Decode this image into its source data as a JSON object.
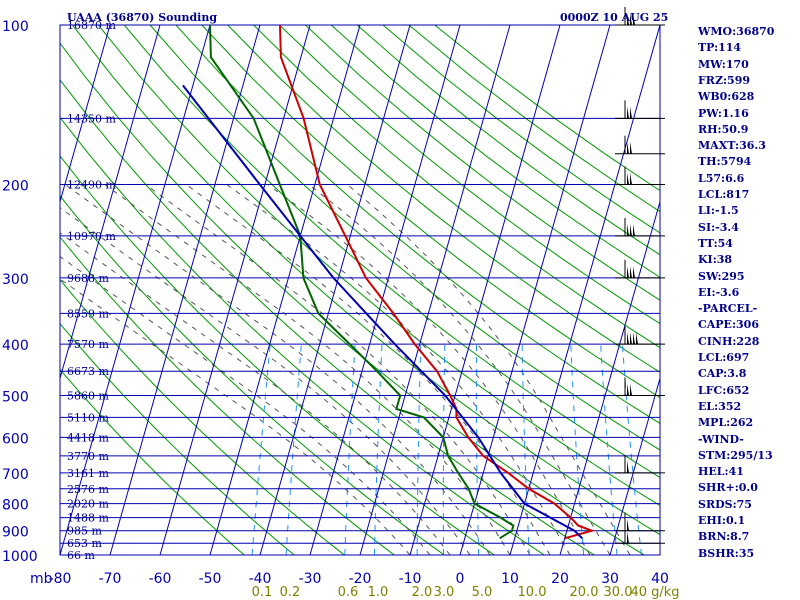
{
  "chart_data": {
    "type": "skew-t",
    "title": "UAAA (36870) Sounding",
    "date": "0000Z 10 AUG 25",
    "pressure_levels": [
      100,
      200,
      300,
      400,
      500,
      600,
      700,
      800,
      900,
      1000
    ],
    "pressure_unit_label": "mb",
    "temperature_ticks": [
      "-80",
      "-70",
      "-60",
      "-50",
      "-40",
      "-30",
      "-20",
      "-10",
      "0",
      "10",
      "20",
      "30",
      "40"
    ],
    "mixing_ratio_labels": [
      "0.1",
      "0.2",
      "0.6",
      "1.0",
      "2.0",
      "3.0",
      "5.0",
      "10.0",
      "20.0",
      "30.0",
      "40 g/kg"
    ],
    "height_labels": [
      {
        "p": 100,
        "label": "16870 m"
      },
      {
        "p": 150,
        "label": "14350 m"
      },
      {
        "p": 200,
        "label": "12490 m"
      },
      {
        "p": 250,
        "label": "10970 m"
      },
      {
        "p": 300,
        "label": "9688 m"
      },
      {
        "p": 350,
        "label": "8559 m"
      },
      {
        "p": 400,
        "label": "7570 m"
      },
      {
        "p": 450,
        "label": "6673 m"
      },
      {
        "p": 500,
        "label": "5860 m"
      },
      {
        "p": 550,
        "label": "5110 m"
      },
      {
        "p": 600,
        "label": "4418 m"
      },
      {
        "p": 650,
        "label": "3770 m"
      },
      {
        "p": 700,
        "label": "3161 m"
      },
      {
        "p": 750,
        "label": "2576 m"
      },
      {
        "p": 800,
        "label": "2020 m"
      },
      {
        "p": 850,
        "label": "1488 m"
      },
      {
        "p": 900,
        "label": "985 m"
      },
      {
        "p": 950,
        "label": "653 m"
      },
      {
        "p": 1000,
        "label": "66 m"
      }
    ],
    "series": [
      {
        "type": "temperature",
        "color": "#cc0000",
        "points": [
          [
            100,
            -66
          ],
          [
            115,
            -64
          ],
          [
            150,
            -56
          ],
          [
            200,
            -49
          ],
          [
            250,
            -41
          ],
          [
            300,
            -34.5
          ],
          [
            350,
            -27
          ],
          [
            400,
            -21
          ],
          [
            450,
            -15
          ],
          [
            500,
            -11
          ],
          [
            530,
            -9
          ],
          [
            550,
            -8.5
          ],
          [
            600,
            -5
          ],
          [
            650,
            -1
          ],
          [
            700,
            5
          ],
          [
            750,
            10
          ],
          [
            800,
            16
          ],
          [
            850,
            20
          ],
          [
            880,
            22
          ],
          [
            900,
            25
          ],
          [
            930,
            20
          ]
        ]
      },
      {
        "type": "dewpoint",
        "color": "#006400",
        "points": [
          [
            100,
            -80
          ],
          [
            115,
            -78
          ],
          [
            150,
            -66
          ],
          [
            200,
            -57
          ],
          [
            250,
            -50
          ],
          [
            300,
            -47
          ],
          [
            350,
            -42
          ],
          [
            400,
            -34
          ],
          [
            450,
            -27
          ],
          [
            500,
            -21
          ],
          [
            530,
            -21
          ],
          [
            550,
            -15
          ],
          [
            600,
            -10
          ],
          [
            650,
            -8
          ],
          [
            700,
            -5
          ],
          [
            750,
            -2
          ],
          [
            800,
            0
          ],
          [
            850,
            6
          ],
          [
            880,
            9
          ],
          [
            900,
            9
          ],
          [
            930,
            7
          ]
        ]
      },
      {
        "type": "parcel",
        "color": "#0000b0",
        "points": [
          [
            130,
            -82
          ],
          [
            200,
            -61
          ],
          [
            300,
            -41
          ],
          [
            400,
            -25
          ],
          [
            500,
            -12
          ],
          [
            600,
            -3
          ],
          [
            700,
            3.5
          ],
          [
            800,
            10
          ],
          [
            900,
            21.5
          ],
          [
            930,
            23.5
          ]
        ]
      }
    ],
    "winds": [
      {
        "p": 100,
        "knots": 15
      },
      {
        "p": 150,
        "knots": 10
      },
      {
        "p": 175,
        "knots": 10
      },
      {
        "p": 200,
        "knots": 10
      },
      {
        "p": 250,
        "knots": 15
      },
      {
        "p": 300,
        "knots": 15
      },
      {
        "p": 400,
        "knots": 20
      },
      {
        "p": 500,
        "knots": 10
      },
      {
        "p": 700,
        "knots": 5
      },
      {
        "p": 900,
        "knots": 5
      },
      {
        "p": 950,
        "knots": 5
      }
    ],
    "colors": {
      "isobar": "#0000b0",
      "isotherm": "#0000b0",
      "dry_adiabat": "#009900",
      "moist_adiabat": "#555555",
      "mixing_ratio": "#1e90ff"
    }
  },
  "stats": [
    "WMO:36870",
    "TP:114",
    "MW:170",
    "FRZ:599",
    "WB0:628",
    "PW:1.16",
    "RH:50.9",
    "MAXT:36.3",
    "TH:5794",
    "L57:6.6",
    "LCL:817",
    "LI:-1.5",
    "SI:-3.4",
    "TT:54",
    "KI:38",
    "SW:295",
    "EI:-3.6",
    "-PARCEL-",
    "CAPE:306",
    "CINH:228",
    "LCL:697",
    "CAP:3.8",
    "LFC:652",
    "EL:352",
    "MPL:262",
    "-WIND-",
    "STM:295/13",
    "HEL:41",
    "SHR+:0.0",
    "SRDS:75",
    "EHI:0.1",
    "BRN:8.7",
    "BSHR:35"
  ]
}
